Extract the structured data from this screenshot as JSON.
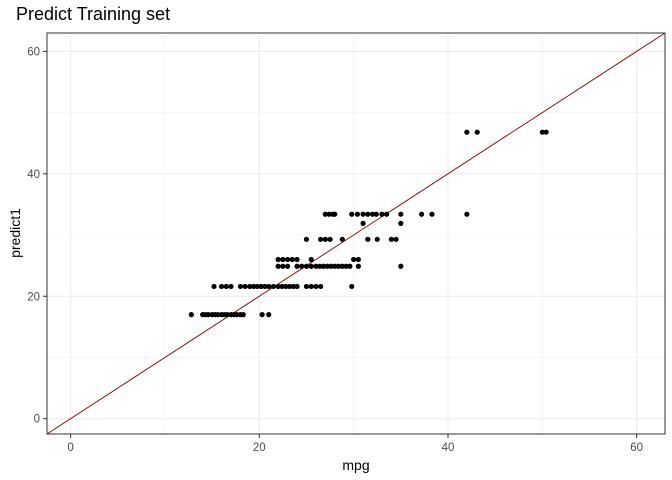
{
  "chart_data": {
    "type": "scatter",
    "title": "Predict Training set",
    "xlabel": "mpg",
    "ylabel": "predict1",
    "xlim": [
      -2.5,
      63
    ],
    "ylim": [
      -2.5,
      63
    ],
    "x_ticks": [
      0,
      20,
      40,
      60
    ],
    "y_ticks": [
      0,
      20,
      40,
      60
    ],
    "grid": true,
    "reference_line": {
      "slope": 1,
      "intercept": 0,
      "color": "#8b0000"
    },
    "point_color": "#000000",
    "points": [
      {
        "x": 12.8,
        "y": 17.0
      },
      {
        "x": 14.0,
        "y": 17.0
      },
      {
        "x": 14.3,
        "y": 17.0
      },
      {
        "x": 14.6,
        "y": 17.0
      },
      {
        "x": 15.0,
        "y": 17.0
      },
      {
        "x": 15.3,
        "y": 17.0
      },
      {
        "x": 15.6,
        "y": 17.0
      },
      {
        "x": 16.0,
        "y": 17.0
      },
      {
        "x": 16.3,
        "y": 17.0
      },
      {
        "x": 16.6,
        "y": 17.0
      },
      {
        "x": 17.0,
        "y": 17.0
      },
      {
        "x": 17.3,
        "y": 17.0
      },
      {
        "x": 17.6,
        "y": 17.0
      },
      {
        "x": 18.0,
        "y": 17.0
      },
      {
        "x": 18.3,
        "y": 17.0
      },
      {
        "x": 20.3,
        "y": 17.0
      },
      {
        "x": 21.0,
        "y": 17.0
      },
      {
        "x": 15.2,
        "y": 21.6
      },
      {
        "x": 16.0,
        "y": 21.6
      },
      {
        "x": 16.5,
        "y": 21.6
      },
      {
        "x": 17.0,
        "y": 21.6
      },
      {
        "x": 18.0,
        "y": 21.6
      },
      {
        "x": 18.5,
        "y": 21.6
      },
      {
        "x": 19.0,
        "y": 21.6
      },
      {
        "x": 19.4,
        "y": 21.6
      },
      {
        "x": 19.8,
        "y": 21.6
      },
      {
        "x": 20.2,
        "y": 21.6
      },
      {
        "x": 20.6,
        "y": 21.6
      },
      {
        "x": 21.0,
        "y": 21.6
      },
      {
        "x": 21.5,
        "y": 21.6
      },
      {
        "x": 22.0,
        "y": 21.6
      },
      {
        "x": 22.4,
        "y": 21.6
      },
      {
        "x": 22.8,
        "y": 21.6
      },
      {
        "x": 23.2,
        "y": 21.6
      },
      {
        "x": 23.6,
        "y": 21.6
      },
      {
        "x": 24.0,
        "y": 21.6
      },
      {
        "x": 25.0,
        "y": 21.6
      },
      {
        "x": 25.5,
        "y": 21.6
      },
      {
        "x": 26.0,
        "y": 21.6
      },
      {
        "x": 26.5,
        "y": 21.6
      },
      {
        "x": 29.8,
        "y": 21.6
      },
      {
        "x": 22.0,
        "y": 24.9
      },
      {
        "x": 22.5,
        "y": 24.9
      },
      {
        "x": 23.0,
        "y": 24.9
      },
      {
        "x": 24.0,
        "y": 24.9
      },
      {
        "x": 24.5,
        "y": 24.9
      },
      {
        "x": 25.0,
        "y": 24.9
      },
      {
        "x": 25.5,
        "y": 24.9
      },
      {
        "x": 26.0,
        "y": 24.9
      },
      {
        "x": 26.4,
        "y": 24.9
      },
      {
        "x": 26.8,
        "y": 24.9
      },
      {
        "x": 27.2,
        "y": 24.9
      },
      {
        "x": 27.6,
        "y": 24.9
      },
      {
        "x": 28.0,
        "y": 24.9
      },
      {
        "x": 28.4,
        "y": 24.9
      },
      {
        "x": 28.8,
        "y": 24.9
      },
      {
        "x": 29.2,
        "y": 24.9
      },
      {
        "x": 29.6,
        "y": 24.9
      },
      {
        "x": 30.5,
        "y": 24.9
      },
      {
        "x": 35.0,
        "y": 24.9
      },
      {
        "x": 22.0,
        "y": 26.0
      },
      {
        "x": 22.5,
        "y": 26.0
      },
      {
        "x": 23.0,
        "y": 26.0
      },
      {
        "x": 23.5,
        "y": 26.0
      },
      {
        "x": 24.0,
        "y": 26.0
      },
      {
        "x": 25.5,
        "y": 26.0
      },
      {
        "x": 30.0,
        "y": 26.0
      },
      {
        "x": 30.5,
        "y": 26.0
      },
      {
        "x": 25.0,
        "y": 29.3
      },
      {
        "x": 26.5,
        "y": 29.3
      },
      {
        "x": 27.0,
        "y": 29.3
      },
      {
        "x": 27.5,
        "y": 29.3
      },
      {
        "x": 28.8,
        "y": 29.3
      },
      {
        "x": 31.5,
        "y": 29.3
      },
      {
        "x": 32.5,
        "y": 29.3
      },
      {
        "x": 34.0,
        "y": 29.3
      },
      {
        "x": 34.5,
        "y": 29.3
      },
      {
        "x": 31.0,
        "y": 31.9
      },
      {
        "x": 35.0,
        "y": 31.9
      },
      {
        "x": 27.0,
        "y": 33.4
      },
      {
        "x": 27.4,
        "y": 33.4
      },
      {
        "x": 27.8,
        "y": 33.4
      },
      {
        "x": 28.0,
        "y": 33.4
      },
      {
        "x": 29.8,
        "y": 33.4
      },
      {
        "x": 30.4,
        "y": 33.4
      },
      {
        "x": 31.0,
        "y": 33.4
      },
      {
        "x": 31.5,
        "y": 33.4
      },
      {
        "x": 32.0,
        "y": 33.4
      },
      {
        "x": 32.4,
        "y": 33.4
      },
      {
        "x": 33.0,
        "y": 33.4
      },
      {
        "x": 33.5,
        "y": 33.4
      },
      {
        "x": 35.0,
        "y": 33.4
      },
      {
        "x": 37.2,
        "y": 33.4
      },
      {
        "x": 38.3,
        "y": 33.4
      },
      {
        "x": 42.0,
        "y": 33.4
      },
      {
        "x": 42.0,
        "y": 46.8
      },
      {
        "x": 43.1,
        "y": 46.8
      },
      {
        "x": 50.0,
        "y": 46.8
      },
      {
        "x": 50.4,
        "y": 46.8
      }
    ]
  }
}
